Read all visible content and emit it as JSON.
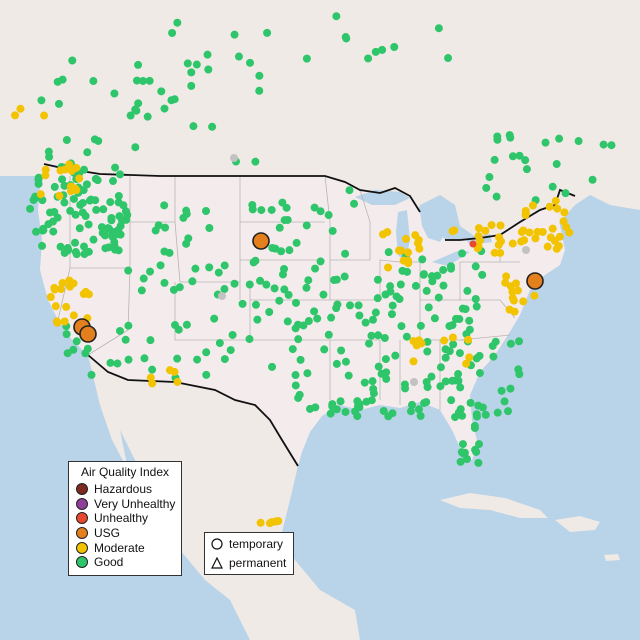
{
  "map": {
    "colors": {
      "water": "#b9d3e8",
      "land": "#efeae6",
      "us": "#f4ecec",
      "border": "#111111",
      "stateLine": "#b9b4b4",
      "Hazardous": "#7e2a1e",
      "Very Unhealthy": "#8f3f97",
      "Unhealthy": "#e8492e",
      "USG": "#e47f1d",
      "Moderate": "#f2c300",
      "Good": "#2fc56a",
      "inactive": "#c2c2c2"
    }
  },
  "legend": {
    "title": "Air Quality Index",
    "categories": [
      "Hazardous",
      "Very Unhealthy",
      "Unhealthy",
      "USG",
      "Moderate",
      "Good"
    ],
    "monitor_types": [
      "temporary",
      "permanent"
    ]
  },
  "monitors": {
    "large_usg": [
      {
        "label": "USG",
        "place": "western South Dakota"
      },
      {
        "label": "USG",
        "place": "central California A"
      },
      {
        "label": "USG",
        "place": "central California B"
      },
      {
        "label": "USG",
        "place": "Washington D.C. area"
      }
    ]
  }
}
